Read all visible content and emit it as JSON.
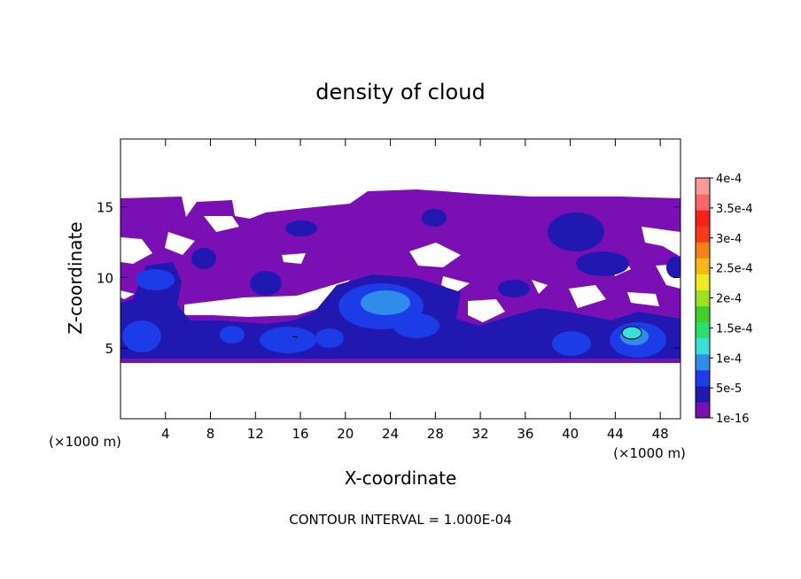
{
  "chart_data": {
    "type": "heatmap",
    "title": "density of cloud",
    "xlabel": "X-coordinate",
    "ylabel": "Z-coordinate",
    "x_unit_left": "(×1000 m)",
    "x_unit_right": "(×1000 m)",
    "xlim": [
      0,
      49.8
    ],
    "ylim": [
      0,
      19.8
    ],
    "x_ticks": [
      4,
      8,
      12,
      16,
      20,
      24,
      28,
      32,
      36,
      40,
      44,
      48
    ],
    "y_ticks": [
      5,
      10,
      15
    ],
    "footer": "CONTOUR INTERVAL = 1.000E-04",
    "colorbar": {
      "labels": [
        "1e-16",
        "5e-5",
        "1e-4",
        "1.5e-4",
        "2e-4",
        "2.5e-4",
        "3e-4",
        "3.5e-4",
        "4e-4"
      ],
      "colors": [
        "#7a10b4",
        "#2018b0",
        "#1c3ce8",
        "#2f8ce8",
        "#38e0d8",
        "#2ce06c",
        "#40d028",
        "#a0e020",
        "#f0e820",
        "#f8b818",
        "#f88018",
        "#f83818",
        "#f82018",
        "#f86868",
        "#f89898"
      ]
    },
    "regions": [
      {
        "level": "1e-16",
        "shape": "cloud deck",
        "x": [
          0,
          49.8
        ],
        "z": [
          4.2,
          15.6
        ]
      },
      {
        "level": "5e-5",
        "shape": "lower band",
        "x": [
          0,
          49.8
        ],
        "z": [
          4.2,
          8.5
        ]
      },
      {
        "level": "1e-4",
        "shape": "core",
        "x": [
          20,
          26
        ],
        "z": [
          6.5,
          9.5
        ]
      },
      {
        "level": "1e-4",
        "shape": "core",
        "x": [
          44,
          49
        ],
        "z": [
          4.8,
          7
        ]
      },
      {
        "level": "1.5e-4",
        "shape": "core",
        "x": [
          44.8,
          46.8
        ],
        "z": [
          5.7,
          6.7
        ]
      }
    ]
  }
}
